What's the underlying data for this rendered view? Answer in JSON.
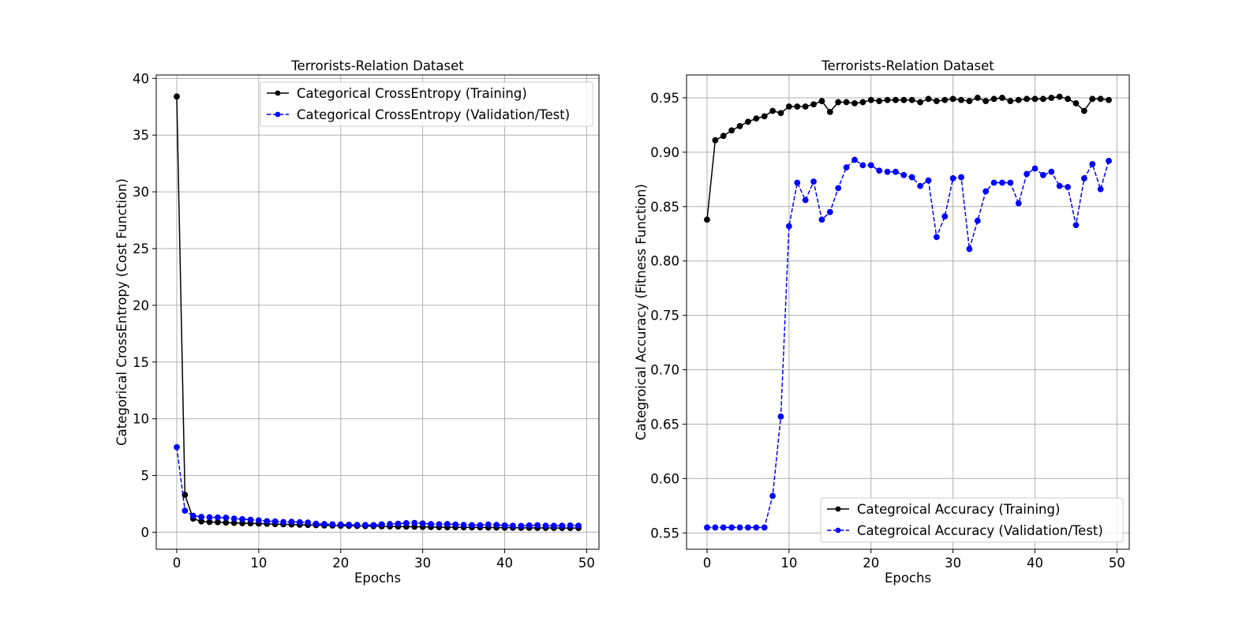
{
  "chart_data": [
    {
      "type": "line",
      "title": "Terrorists-Relation Dataset",
      "xlabel": "Epochs",
      "ylabel": "Categorical CrossEntropy (Cost Function)",
      "xlim": [
        -2.5,
        51.5
      ],
      "ylim": [
        -1.5,
        40.3
      ],
      "xticks": [
        0,
        10,
        20,
        30,
        40,
        50
      ],
      "yticks": [
        0,
        5,
        10,
        15,
        20,
        25,
        30,
        35,
        40
      ],
      "grid": true,
      "legend_position": "top-right",
      "series": [
        {
          "name": "Categorical CrossEntropy (Training)",
          "color": "#000000",
          "line_style": "solid",
          "marker": "circle",
          "x": [
            0,
            1,
            2,
            3,
            4,
            5,
            6,
            7,
            8,
            9,
            10,
            11,
            12,
            13,
            14,
            15,
            16,
            17,
            18,
            19,
            20,
            21,
            22,
            23,
            24,
            25,
            26,
            27,
            28,
            29,
            30,
            31,
            32,
            33,
            34,
            35,
            36,
            37,
            38,
            39,
            40,
            41,
            42,
            43,
            44,
            45,
            46,
            47,
            48,
            49
          ],
          "values": [
            38.4,
            3.3,
            1.2,
            0.95,
            0.9,
            0.88,
            0.85,
            0.82,
            0.8,
            0.78,
            0.76,
            0.74,
            0.72,
            0.7,
            0.68,
            0.66,
            0.64,
            0.62,
            0.6,
            0.59,
            0.57,
            0.56,
            0.55,
            0.54,
            0.53,
            0.52,
            0.51,
            0.5,
            0.49,
            0.48,
            0.47,
            0.46,
            0.45,
            0.44,
            0.44,
            0.43,
            0.42,
            0.42,
            0.41,
            0.41,
            0.4,
            0.4,
            0.39,
            0.39,
            0.38,
            0.38,
            0.38,
            0.37,
            0.37,
            0.37
          ]
        },
        {
          "name": "Categorical CrossEntropy (Validation/Test)",
          "color": "#0000ff",
          "line_style": "dashed",
          "marker": "circle",
          "x": [
            0,
            1,
            2,
            3,
            4,
            5,
            6,
            7,
            8,
            9,
            10,
            11,
            12,
            13,
            14,
            15,
            16,
            17,
            18,
            19,
            20,
            21,
            22,
            23,
            24,
            25,
            26,
            27,
            28,
            29,
            30,
            31,
            32,
            33,
            34,
            35,
            36,
            37,
            38,
            39,
            40,
            41,
            42,
            43,
            44,
            45,
            46,
            47,
            48,
            49
          ],
          "values": [
            7.5,
            1.9,
            1.45,
            1.35,
            1.32,
            1.3,
            1.28,
            1.2,
            1.15,
            1.1,
            1.05,
            0.98,
            0.95,
            0.9,
            0.92,
            0.88,
            0.85,
            0.75,
            0.72,
            0.7,
            0.68,
            0.66,
            0.65,
            0.64,
            0.63,
            0.7,
            0.72,
            0.75,
            0.8,
            0.82,
            0.78,
            0.72,
            0.7,
            0.72,
            0.68,
            0.65,
            0.63,
            0.62,
            0.68,
            0.65,
            0.6,
            0.58,
            0.56,
            0.6,
            0.62,
            0.58,
            0.57,
            0.58,
            0.6,
            0.58
          ]
        }
      ]
    },
    {
      "type": "line",
      "title": "Terrorists-Relation Dataset",
      "xlabel": "Epochs",
      "ylabel": "Categroical Accuracy (Fitness Function)",
      "xlim": [
        -2.5,
        51.5
      ],
      "ylim": [
        0.535,
        0.971
      ],
      "xticks": [
        0,
        10,
        20,
        30,
        40,
        50
      ],
      "yticks": [
        0.55,
        0.6,
        0.65,
        0.7,
        0.75,
        0.8,
        0.85,
        0.9,
        0.95
      ],
      "yticklabels": [
        "0.55",
        "0.60",
        "0.65",
        "0.70",
        "0.75",
        "0.80",
        "0.85",
        "0.90",
        "0.95"
      ],
      "grid": true,
      "legend_position": "bottom-right",
      "series": [
        {
          "name": "Categroical Accuracy (Training)",
          "color": "#000000",
          "line_style": "solid",
          "marker": "circle",
          "x": [
            0,
            1,
            2,
            3,
            4,
            5,
            6,
            7,
            8,
            9,
            10,
            11,
            12,
            13,
            14,
            15,
            16,
            17,
            18,
            19,
            20,
            21,
            22,
            23,
            24,
            25,
            26,
            27,
            28,
            29,
            30,
            31,
            32,
            33,
            34,
            35,
            36,
            37,
            38,
            39,
            40,
            41,
            42,
            43,
            44,
            45,
            46,
            47,
            48,
            49
          ],
          "values": [
            0.838,
            0.911,
            0.915,
            0.92,
            0.924,
            0.928,
            0.931,
            0.933,
            0.938,
            0.936,
            0.942,
            0.942,
            0.942,
            0.944,
            0.947,
            0.937,
            0.946,
            0.946,
            0.945,
            0.946,
            0.948,
            0.947,
            0.948,
            0.948,
            0.948,
            0.948,
            0.946,
            0.949,
            0.947,
            0.948,
            0.949,
            0.948,
            0.947,
            0.95,
            0.947,
            0.949,
            0.95,
            0.947,
            0.948,
            0.949,
            0.949,
            0.949,
            0.95,
            0.951,
            0.949,
            0.945,
            0.938,
            0.949,
            0.949,
            0.948
          ]
        },
        {
          "name": "Categroical Accuracy (Validation/Test)",
          "color": "#0000ff",
          "line_style": "dashed",
          "marker": "circle",
          "x": [
            0,
            1,
            2,
            3,
            4,
            5,
            6,
            7,
            8,
            9,
            10,
            11,
            12,
            13,
            14,
            15,
            16,
            17,
            18,
            19,
            20,
            21,
            22,
            23,
            24,
            25,
            26,
            27,
            28,
            29,
            30,
            31,
            32,
            33,
            34,
            35,
            36,
            37,
            38,
            39,
            40,
            41,
            42,
            43,
            44,
            45,
            46,
            47,
            48,
            49
          ],
          "values": [
            0.555,
            0.555,
            0.555,
            0.555,
            0.555,
            0.555,
            0.555,
            0.555,
            0.584,
            0.657,
            0.832,
            0.872,
            0.856,
            0.873,
            0.838,
            0.845,
            0.867,
            0.886,
            0.893,
            0.888,
            0.888,
            0.883,
            0.882,
            0.882,
            0.879,
            0.877,
            0.869,
            0.874,
            0.822,
            0.841,
            0.876,
            0.877,
            0.811,
            0.837,
            0.864,
            0.872,
            0.872,
            0.872,
            0.853,
            0.88,
            0.885,
            0.879,
            0.882,
            0.869,
            0.868,
            0.833,
            0.876,
            0.889,
            0.866,
            0.892
          ]
        }
      ]
    }
  ]
}
